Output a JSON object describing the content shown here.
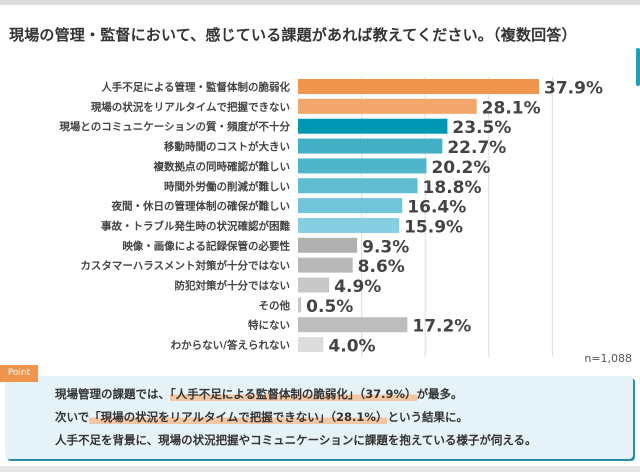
{
  "title": "現場の管理・監督において、感じている課題があれば教えてください。（複数回答）",
  "sample_size": "n=1,088",
  "chart_data": {
    "type": "bar",
    "orientation": "horizontal",
    "title": "現場の管理・監督において、感じている課題があれば教えてください。（複数回答）",
    "categories": [
      "人手不足による管理・監督体制の脆弱化",
      "現場の状況をリアルタイムで把握できない",
      "現場とのコミュニケーションの質・頻度が不十分",
      "移動時間のコストが大きい",
      "複数拠点の同時確認が難しい",
      "時間外労働の削減が難しい",
      "夜間・休日の管理体制の確保が難しい",
      "事故・トラブル発生時の状況確認が困難",
      "映像・画像による記録保管の必要性",
      "カスタマーハラスメント対策が十分ではない",
      "防犯対策が十分ではない",
      "その他",
      "特にない",
      "わからない/答えられない"
    ],
    "values": [
      37.9,
      28.1,
      23.5,
      22.7,
      20.2,
      18.8,
      16.4,
      15.9,
      9.3,
      8.6,
      4.9,
      0.5,
      17.2,
      4.0
    ],
    "value_labels": [
      "37.9%",
      "28.1%",
      "23.5%",
      "22.7%",
      "20.2%",
      "18.8%",
      "16.4%",
      "15.9%",
      "9.3%",
      "8.6%",
      "4.9%",
      "0.5%",
      "17.2%",
      "4.0%"
    ],
    "colors": [
      "#f0954e",
      "#f2a66b",
      "#0097b2",
      "#43afc7",
      "#4fb5cb",
      "#5fbcd1",
      "#72c5d8",
      "#86cfe0",
      "#b0b0b0",
      "#b8b8b8",
      "#c8c8c8",
      "#c8c8c8",
      "#bdbdbd",
      "#dcdcdc"
    ],
    "xlim": [
      0,
      40
    ],
    "grid": true,
    "unit": "%"
  },
  "point": {
    "label": "Point",
    "line1_pre": "現場管理の課題では、",
    "line1_hl": "「人手不足による監督体制の脆弱化」（37.9%）",
    "line1_post": "が最多。",
    "line2_pre": "次いで",
    "line2_hl": "「現場の状況をリアルタイムで把握できない」（28.1%）",
    "line2_post": "という結果に。",
    "line3": "人手不足を背景に、現場の状況把握やコミュニケーションに課題を抱えている様子が伺える。"
  }
}
